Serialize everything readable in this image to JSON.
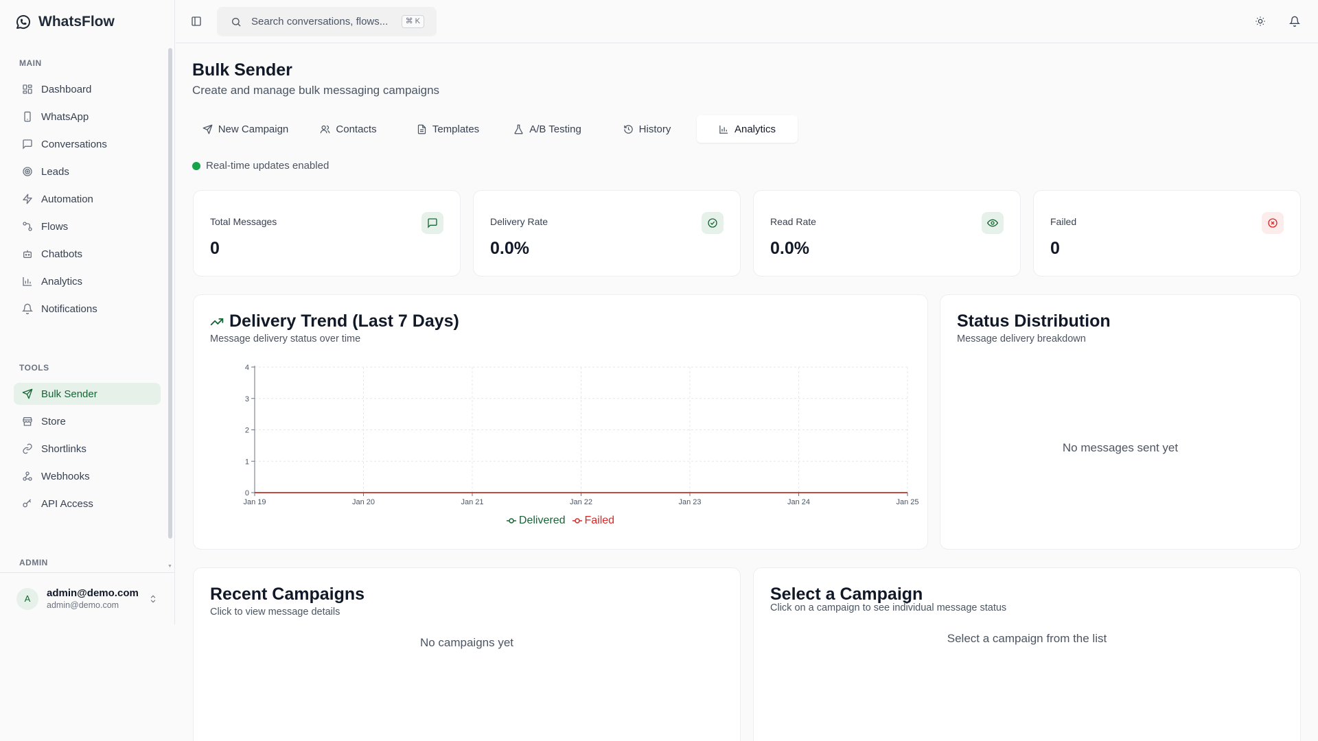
{
  "app": {
    "name": "WhatsFlow"
  },
  "sidebar": {
    "main_label": "MAIN",
    "main_items": [
      {
        "label": "Dashboard",
        "icon": "dashboard-icon"
      },
      {
        "label": "WhatsApp",
        "icon": "phone-icon"
      },
      {
        "label": "Conversations",
        "icon": "message-icon"
      },
      {
        "label": "Leads",
        "icon": "target-icon"
      },
      {
        "label": "Automation",
        "icon": "zap-icon"
      },
      {
        "label": "Flows",
        "icon": "flow-icon"
      },
      {
        "label": "Chatbots",
        "icon": "bot-icon"
      },
      {
        "label": "Analytics",
        "icon": "bar-chart-icon"
      },
      {
        "label": "Notifications",
        "icon": "bell-icon"
      }
    ],
    "tools_label": "TOOLS",
    "tools_items": [
      {
        "label": "Bulk Sender",
        "icon": "send-icon",
        "active": true
      },
      {
        "label": "Store",
        "icon": "store-icon"
      },
      {
        "label": "Shortlinks",
        "icon": "link-icon"
      },
      {
        "label": "Webhooks",
        "icon": "webhook-icon"
      },
      {
        "label": "API Access",
        "icon": "key-icon"
      }
    ],
    "admin_label": "ADMIN",
    "user": {
      "avatar": "A",
      "name": "admin@demo.com",
      "email": "admin@demo.com"
    }
  },
  "topbar": {
    "search_placeholder": "Search conversations, flows...",
    "shortcut": "⌘ K"
  },
  "page": {
    "title": "Bulk Sender",
    "subtitle": "Create and manage bulk messaging campaigns"
  },
  "tabs": [
    {
      "label": "New Campaign",
      "icon": "send-icon"
    },
    {
      "label": "Contacts",
      "icon": "users-icon"
    },
    {
      "label": "Templates",
      "icon": "file-text-icon"
    },
    {
      "label": "A/B Testing",
      "icon": "flask-icon"
    },
    {
      "label": "History",
      "icon": "history-icon"
    },
    {
      "label": "Analytics",
      "icon": "bar-chart-icon",
      "active": true
    }
  ],
  "realtime": {
    "text": "Real-time updates enabled",
    "color": "#16a34a"
  },
  "stats": [
    {
      "label": "Total Messages",
      "value": "0",
      "icon": "message-square-icon",
      "icon_color": "#166534",
      "icon_bg": "#e6f1ea"
    },
    {
      "label": "Delivery Rate",
      "value": "0.0%",
      "icon": "check-circle-icon",
      "icon_color": "#166534",
      "icon_bg": "#e6f1ea"
    },
    {
      "label": "Read Rate",
      "value": "0.0%",
      "icon": "eye-icon",
      "icon_color": "#166534",
      "icon_bg": "#e6f1ea"
    },
    {
      "label": "Failed",
      "value": "0",
      "icon": "x-circle-icon",
      "icon_color": "#dc2626",
      "icon_bg": "#fdecec"
    }
  ],
  "trend": {
    "title": "Delivery Trend (Last 7 Days)",
    "subtitle": "Message delivery status over time"
  },
  "chart_data": {
    "type": "line",
    "x": [
      "Jan 19",
      "Jan 20",
      "Jan 21",
      "Jan 22",
      "Jan 23",
      "Jan 24",
      "Jan 25"
    ],
    "series": [
      {
        "name": "Delivered",
        "values": [
          0,
          0,
          0,
          0,
          0,
          0,
          0
        ],
        "color": "#166534"
      },
      {
        "name": "Failed",
        "values": [
          0,
          0,
          0,
          0,
          0,
          0,
          0
        ],
        "color": "#dc2626"
      }
    ],
    "ylim": [
      0,
      4
    ],
    "yticks": [
      "0",
      "1",
      "2",
      "3",
      "4"
    ],
    "grid": true,
    "legend": "bottom"
  },
  "status": {
    "title": "Status Distribution",
    "subtitle": "Message delivery breakdown",
    "empty": "No messages sent yet"
  },
  "recent": {
    "title": "Recent Campaigns",
    "subtitle": "Click to view message details",
    "empty": "No campaigns yet"
  },
  "select": {
    "title": "Select a Campaign",
    "subtitle": "Click on a campaign to see individual message status",
    "empty": "Select a campaign from the list"
  }
}
